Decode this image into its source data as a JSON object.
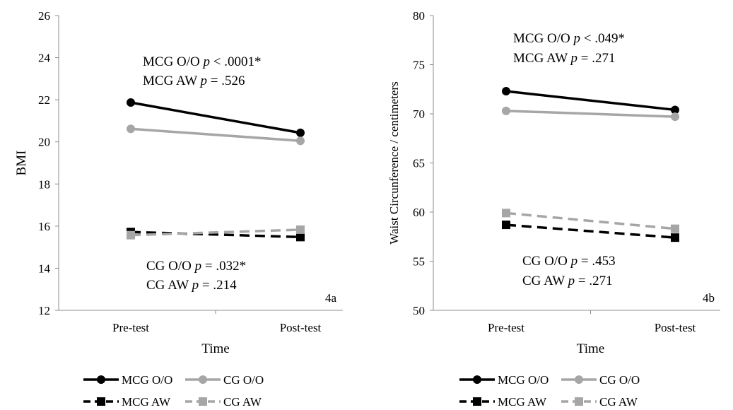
{
  "chart_data": [
    {
      "type": "line",
      "panel_label": "4a",
      "xlabel": "Time",
      "ylabel": "BMI",
      "categories": [
        "Pre-test",
        "Post-test"
      ],
      "ylim": [
        12,
        26
      ],
      "yticks": [
        12,
        14,
        16,
        18,
        20,
        22,
        24,
        26
      ],
      "grid": false,
      "series": [
        {
          "name": "MCG O/O",
          "values": [
            21.87,
            20.43
          ],
          "color": "#000000",
          "marker": "circle",
          "dash": false
        },
        {
          "name": "CG O/O",
          "values": [
            20.62,
            20.05
          ],
          "color": "#a6a6a6",
          "marker": "circle",
          "dash": false
        },
        {
          "name": "MCG AW",
          "values": [
            15.72,
            15.48
          ],
          "color": "#000000",
          "marker": "square",
          "dash": true
        },
        {
          "name": "CG AW",
          "values": [
            15.57,
            15.83
          ],
          "color": "#a6a6a6",
          "marker": "square",
          "dash": true
        }
      ],
      "annotations": {
        "top": [
          {
            "label": "MCG O/O",
            "p": "p",
            "value": " < .0001*"
          },
          {
            "label": "MCG AW",
            "p": "p",
            "value": " = .526"
          }
        ],
        "bottom": [
          {
            "label": "CG O/O",
            "p": "p",
            "value": " = .032*"
          },
          {
            "label": "CG AW",
            "p": "p",
            "value": " = .214"
          }
        ]
      },
      "legend": {
        "placement": "bottom",
        "text_color": "#000000",
        "items": [
          "MCG O/O",
          "CG O/O",
          "MCG AW",
          "CG AW"
        ]
      }
    },
    {
      "type": "line",
      "panel_label": "4b",
      "xlabel": "Time",
      "ylabel": "Waist Circunference / centimeters",
      "categories": [
        "Pre-test",
        "Post-test"
      ],
      "ylim": [
        50,
        80
      ],
      "yticks": [
        50,
        55,
        60,
        65,
        70,
        75,
        80
      ],
      "grid": false,
      "series": [
        {
          "name": "MCG O/O",
          "values": [
            72.3,
            70.4
          ],
          "color": "#000000",
          "marker": "circle",
          "dash": false
        },
        {
          "name": "CG O/O",
          "values": [
            70.3,
            69.7
          ],
          "color": "#a6a6a6",
          "marker": "circle",
          "dash": false
        },
        {
          "name": "MCG AW",
          "values": [
            58.7,
            57.4
          ],
          "color": "#000000",
          "marker": "square",
          "dash": true
        },
        {
          "name": "CG AW",
          "values": [
            59.9,
            58.3
          ],
          "color": "#a6a6a6",
          "marker": "square",
          "dash": true
        }
      ],
      "annotations": {
        "top": [
          {
            "label": "MCG O/O",
            "p": "p",
            "value": " < .049*"
          },
          {
            "label": "MCG AW",
            "p": "p",
            "value": " = .271"
          }
        ],
        "bottom": [
          {
            "label": "CG O/O",
            "p": "p",
            "value": " = .453"
          },
          {
            "label": "CG AW",
            "p": "p",
            "value": " = .271"
          }
        ]
      },
      "legend": {
        "placement": "bottom",
        "text_color": "#999999",
        "items": [
          "MCG O/O",
          "CG O/O",
          "MCG AW",
          "CG AW"
        ]
      }
    }
  ]
}
